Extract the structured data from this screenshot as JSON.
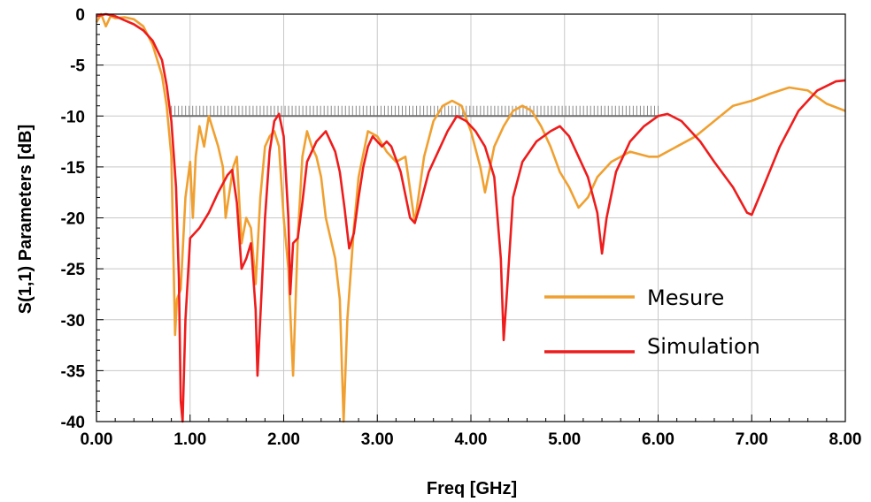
{
  "chart_data": {
    "type": "line",
    "xlabel": "Freq [GHz]",
    "ylabel": "S(1,1) Parameters [dB]",
    "xlim": [
      0,
      8
    ],
    "ylim": [
      -40,
      0
    ],
    "xticks": [
      "0.00",
      "1.00",
      "2.00",
      "3.00",
      "4.00",
      "5.00",
      "6.00",
      "7.00",
      "8.00"
    ],
    "yticks": [
      "0",
      "-5",
      "-10",
      "-15",
      "-20",
      "-25",
      "-30",
      "-35",
      "-40"
    ],
    "grid": true,
    "legend_position": "right",
    "reference_band": {
      "x": [
        0.8,
        6.0
      ],
      "y": [
        -10,
        -9
      ]
    },
    "series": [
      {
        "name": "Mesure",
        "color": "#f0a030",
        "points": [
          [
            0.0,
            -0.8
          ],
          [
            0.05,
            0.0
          ],
          [
            0.1,
            -1.2
          ],
          [
            0.15,
            -0.2
          ],
          [
            0.2,
            -0.4
          ],
          [
            0.3,
            -0.3
          ],
          [
            0.4,
            -0.5
          ],
          [
            0.5,
            -1.2
          ],
          [
            0.6,
            -3.0
          ],
          [
            0.7,
            -6.0
          ],
          [
            0.75,
            -9.0
          ],
          [
            0.8,
            -14.0
          ],
          [
            0.84,
            -31.5
          ],
          [
            0.86,
            -28.0
          ],
          [
            0.9,
            -27.0
          ],
          [
            0.95,
            -18.0
          ],
          [
            1.0,
            -14.5
          ],
          [
            1.03,
            -20.0
          ],
          [
            1.06,
            -14.0
          ],
          [
            1.1,
            -11.0
          ],
          [
            1.15,
            -13.0
          ],
          [
            1.2,
            -10.0
          ],
          [
            1.25,
            -11.5
          ],
          [
            1.3,
            -13.0
          ],
          [
            1.35,
            -15.0
          ],
          [
            1.38,
            -20.0
          ],
          [
            1.42,
            -17.5
          ],
          [
            1.46,
            -15.0
          ],
          [
            1.5,
            -14.0
          ],
          [
            1.55,
            -22.5
          ],
          [
            1.6,
            -20.0
          ],
          [
            1.65,
            -21.0
          ],
          [
            1.7,
            -26.5
          ],
          [
            1.75,
            -18.0
          ],
          [
            1.8,
            -13.0
          ],
          [
            1.85,
            -12.0
          ],
          [
            1.9,
            -11.5
          ],
          [
            1.95,
            -13.0
          ],
          [
            2.0,
            -20.0
          ],
          [
            2.05,
            -25.0
          ],
          [
            2.1,
            -35.5
          ],
          [
            2.15,
            -22.0
          ],
          [
            2.2,
            -14.0
          ],
          [
            2.25,
            -11.5
          ],
          [
            2.3,
            -13.0
          ],
          [
            2.35,
            -14.0
          ],
          [
            2.4,
            -16.0
          ],
          [
            2.45,
            -20.0
          ],
          [
            2.5,
            -22.0
          ],
          [
            2.55,
            -24.0
          ],
          [
            2.6,
            -28.0
          ],
          [
            2.64,
            -40.0
          ],
          [
            2.68,
            -30.0
          ],
          [
            2.75,
            -21.0
          ],
          [
            2.8,
            -16.0
          ],
          [
            2.9,
            -11.5
          ],
          [
            3.0,
            -12.0
          ],
          [
            3.1,
            -13.5
          ],
          [
            3.2,
            -14.5
          ],
          [
            3.3,
            -14.0
          ],
          [
            3.4,
            -20.5
          ],
          [
            3.5,
            -14.0
          ],
          [
            3.6,
            -10.5
          ],
          [
            3.7,
            -9.0
          ],
          [
            3.8,
            -8.5
          ],
          [
            3.9,
            -9.0
          ],
          [
            4.0,
            -11.5
          ],
          [
            4.1,
            -15.0
          ],
          [
            4.15,
            -17.5
          ],
          [
            4.25,
            -13.0
          ],
          [
            4.35,
            -11.0
          ],
          [
            4.45,
            -9.5
          ],
          [
            4.55,
            -9.0
          ],
          [
            4.65,
            -9.5
          ],
          [
            4.75,
            -11.0
          ],
          [
            4.85,
            -13.0
          ],
          [
            4.95,
            -15.5
          ],
          [
            5.05,
            -17.0
          ],
          [
            5.15,
            -19.0
          ],
          [
            5.25,
            -18.0
          ],
          [
            5.35,
            -16.0
          ],
          [
            5.5,
            -14.5
          ],
          [
            5.7,
            -13.5
          ],
          [
            5.9,
            -14.0
          ],
          [
            6.0,
            -14.0
          ],
          [
            6.2,
            -13.0
          ],
          [
            6.4,
            -12.0
          ],
          [
            6.6,
            -10.5
          ],
          [
            6.8,
            -9.0
          ],
          [
            7.0,
            -8.5
          ],
          [
            7.2,
            -7.8
          ],
          [
            7.4,
            -7.2
          ],
          [
            7.6,
            -7.5
          ],
          [
            7.8,
            -8.8
          ],
          [
            8.0,
            -9.5
          ]
        ]
      },
      {
        "name": "Simulation",
        "color": "#ee1c1c",
        "points": [
          [
            0.0,
            -0.2
          ],
          [
            0.1,
            0.0
          ],
          [
            0.2,
            -0.2
          ],
          [
            0.3,
            -0.6
          ],
          [
            0.4,
            -1.0
          ],
          [
            0.5,
            -1.6
          ],
          [
            0.6,
            -2.6
          ],
          [
            0.7,
            -4.5
          ],
          [
            0.75,
            -7.0
          ],
          [
            0.8,
            -10.5
          ],
          [
            0.85,
            -17.0
          ],
          [
            0.88,
            -26.0
          ],
          [
            0.9,
            -38.0
          ],
          [
            0.92,
            -40.0
          ],
          [
            0.95,
            -30.0
          ],
          [
            1.0,
            -22.0
          ],
          [
            1.1,
            -21.0
          ],
          [
            1.2,
            -19.5
          ],
          [
            1.3,
            -17.5
          ],
          [
            1.4,
            -15.8
          ],
          [
            1.45,
            -15.3
          ],
          [
            1.5,
            -18.5
          ],
          [
            1.55,
            -25.0
          ],
          [
            1.6,
            -24.0
          ],
          [
            1.65,
            -22.5
          ],
          [
            1.7,
            -29.0
          ],
          [
            1.72,
            -35.5
          ],
          [
            1.76,
            -28.0
          ],
          [
            1.8,
            -20.0
          ],
          [
            1.85,
            -13.5
          ],
          [
            1.9,
            -10.5
          ],
          [
            1.95,
            -9.8
          ],
          [
            2.0,
            -12.0
          ],
          [
            2.05,
            -20.0
          ],
          [
            2.07,
            -27.5
          ],
          [
            2.1,
            -22.5
          ],
          [
            2.15,
            -22.0
          ],
          [
            2.2,
            -18.5
          ],
          [
            2.25,
            -14.5
          ],
          [
            2.3,
            -13.5
          ],
          [
            2.35,
            -12.5
          ],
          [
            2.4,
            -12.0
          ],
          [
            2.45,
            -11.5
          ],
          [
            2.5,
            -12.5
          ],
          [
            2.55,
            -13.5
          ],
          [
            2.6,
            -15.5
          ],
          [
            2.65,
            -19.0
          ],
          [
            2.7,
            -23.0
          ],
          [
            2.75,
            -21.5
          ],
          [
            2.8,
            -18.0
          ],
          [
            2.85,
            -15.0
          ],
          [
            2.9,
            -13.0
          ],
          [
            2.95,
            -12.0
          ],
          [
            3.0,
            -12.5
          ],
          [
            3.05,
            -13.0
          ],
          [
            3.1,
            -12.5
          ],
          [
            3.15,
            -13.0
          ],
          [
            3.25,
            -15.5
          ],
          [
            3.35,
            -20.0
          ],
          [
            3.4,
            -20.5
          ],
          [
            3.45,
            -19.0
          ],
          [
            3.55,
            -15.5
          ],
          [
            3.65,
            -13.5
          ],
          [
            3.75,
            -11.5
          ],
          [
            3.85,
            -10.0
          ],
          [
            3.95,
            -10.5
          ],
          [
            4.05,
            -11.5
          ],
          [
            4.15,
            -13.0
          ],
          [
            4.25,
            -16.0
          ],
          [
            4.32,
            -24.0
          ],
          [
            4.35,
            -32.0
          ],
          [
            4.38,
            -28.0
          ],
          [
            4.45,
            -18.0
          ],
          [
            4.55,
            -14.5
          ],
          [
            4.7,
            -12.5
          ],
          [
            4.85,
            -11.5
          ],
          [
            4.95,
            -11.0
          ],
          [
            5.05,
            -12.0
          ],
          [
            5.15,
            -14.0
          ],
          [
            5.25,
            -16.0
          ],
          [
            5.35,
            -19.5
          ],
          [
            5.4,
            -23.5
          ],
          [
            5.45,
            -20.0
          ],
          [
            5.55,
            -15.5
          ],
          [
            5.7,
            -12.5
          ],
          [
            5.85,
            -11.0
          ],
          [
            6.0,
            -10.0
          ],
          [
            6.1,
            -9.8
          ],
          [
            6.25,
            -10.5
          ],
          [
            6.45,
            -12.5
          ],
          [
            6.6,
            -14.5
          ],
          [
            6.8,
            -17.0
          ],
          [
            6.95,
            -19.5
          ],
          [
            7.0,
            -19.7
          ],
          [
            7.1,
            -17.5
          ],
          [
            7.3,
            -13.0
          ],
          [
            7.5,
            -9.5
          ],
          [
            7.7,
            -7.5
          ],
          [
            7.9,
            -6.6
          ],
          [
            8.0,
            -6.5
          ]
        ]
      }
    ]
  }
}
